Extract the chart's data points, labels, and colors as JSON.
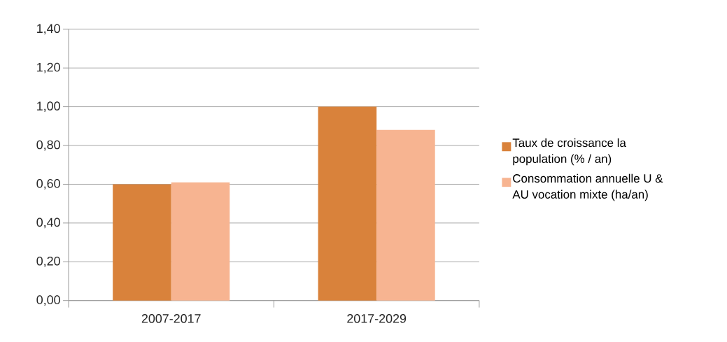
{
  "chart_data": {
    "type": "bar",
    "categories": [
      "2007-2017",
      "2017-2029"
    ],
    "series": [
      {
        "name": "Taux de croissance la population (% / an)",
        "color": "#d9823b",
        "values": [
          0.6,
          1.0
        ]
      },
      {
        "name": "Consommation annuelle U & AU vocation mixte (ha/an)",
        "color": "#f7b491",
        "values": [
          0.61,
          0.88
        ]
      }
    ],
    "ylim": [
      0,
      1.4
    ],
    "yticks": [
      {
        "value": 0,
        "label": "0,00"
      },
      {
        "value": 0.2,
        "label": "0,20"
      },
      {
        "value": 0.4,
        "label": "0,40"
      },
      {
        "value": 0.6,
        "label": "0,60"
      },
      {
        "value": 0.8,
        "label": "0,80"
      },
      {
        "value": 1.0,
        "label": "1,00"
      },
      {
        "value": 1.2,
        "label": "1,20"
      },
      {
        "value": 1.4,
        "label": "1,40"
      }
    ],
    "grid": "y",
    "legend": "right"
  }
}
